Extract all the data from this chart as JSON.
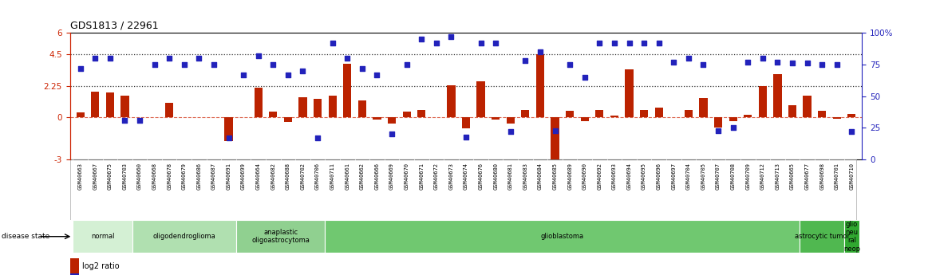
{
  "title": "GDS1813 / 22961",
  "samples": [
    "GSM40663",
    "GSM40667",
    "GSM40675",
    "GSM40703",
    "GSM40660",
    "GSM40668",
    "GSM40678",
    "GSM40679",
    "GSM40686",
    "GSM40687",
    "GSM40691",
    "GSM40699",
    "GSM40664",
    "GSM40682",
    "GSM40688",
    "GSM40702",
    "GSM40706",
    "GSM40711",
    "GSM40661",
    "GSM40662",
    "GSM40666",
    "GSM40669",
    "GSM40670",
    "GSM40671",
    "GSM40672",
    "GSM40673",
    "GSM40674",
    "GSM40676",
    "GSM40680",
    "GSM40681",
    "GSM40683",
    "GSM40684",
    "GSM40685",
    "GSM40689",
    "GSM40690",
    "GSM40692",
    "GSM40693",
    "GSM40694",
    "GSM40695",
    "GSM40696",
    "GSM40697",
    "GSM40704",
    "GSM40705",
    "GSM40707",
    "GSM40708",
    "GSM40709",
    "GSM40712",
    "GSM40713",
    "GSM40665",
    "GSM40677",
    "GSM40698",
    "GSM40701",
    "GSM40710"
  ],
  "log2_ratio": [
    0.35,
    1.85,
    1.75,
    1.55,
    0.0,
    0.0,
    1.05,
    0.0,
    0.0,
    0.0,
    -1.7,
    0.0,
    2.1,
    0.4,
    -0.35,
    1.45,
    1.3,
    1.55,
    3.8,
    1.2,
    -0.15,
    -0.45,
    0.4,
    0.55,
    0.0,
    2.3,
    -0.8,
    2.55,
    -0.15,
    -0.45,
    0.5,
    4.5,
    -3.1,
    0.45,
    -0.25,
    0.5,
    0.15,
    3.4,
    0.55,
    0.7,
    0.0,
    0.5,
    1.35,
    -0.75,
    -0.25,
    0.2,
    2.2,
    3.1,
    0.85,
    1.55,
    0.45,
    -0.1,
    0.25
  ],
  "percentile_rank_pct": [
    72,
    80,
    80,
    31,
    31,
    75,
    80,
    75,
    80,
    75,
    17,
    67,
    82,
    75,
    67,
    70,
    17,
    92,
    80,
    72,
    67,
    20,
    75,
    95,
    92,
    97,
    18,
    92,
    92,
    22,
    78,
    85,
    23,
    75,
    65,
    92,
    92,
    92,
    92,
    92,
    77,
    80,
    75,
    23,
    25,
    77,
    80,
    77,
    76,
    76,
    75,
    75,
    22
  ],
  "disease_groups": [
    {
      "label": "normal",
      "start": 0,
      "end": 4,
      "color": "#d4f0d4"
    },
    {
      "label": "oligodendroglioma",
      "start": 4,
      "end": 11,
      "color": "#b0e0b0"
    },
    {
      "label": "anaplastic\noligoastrocytoma",
      "start": 11,
      "end": 17,
      "color": "#90d090"
    },
    {
      "label": "glioblastoma",
      "start": 17,
      "end": 49,
      "color": "#70c870"
    },
    {
      "label": "astrocytic tumor",
      "start": 49,
      "end": 52,
      "color": "#50b850"
    },
    {
      "label": "glio\nneu\nral\nneop",
      "start": 52,
      "end": 53,
      "color": "#30a830"
    }
  ],
  "ylim_left": [
    -3,
    6
  ],
  "ylim_right": [
    0,
    100
  ],
  "yticks_left": [
    -3,
    0,
    2.25,
    4.5,
    6
  ],
  "ytick_labels_left": [
    "-3",
    "0",
    "2.25",
    "4.5",
    "6"
  ],
  "yticks_right": [
    0,
    25,
    50,
    75,
    100
  ],
  "ytick_labels_right": [
    "0",
    "25",
    "50",
    "75",
    "100%"
  ],
  "bar_color": "#bb2200",
  "dot_color": "#2222bb",
  "bar_width": 0.55,
  "dot_size": 16,
  "left_axis_color": "#cc2200",
  "right_axis_color": "#2222bb"
}
